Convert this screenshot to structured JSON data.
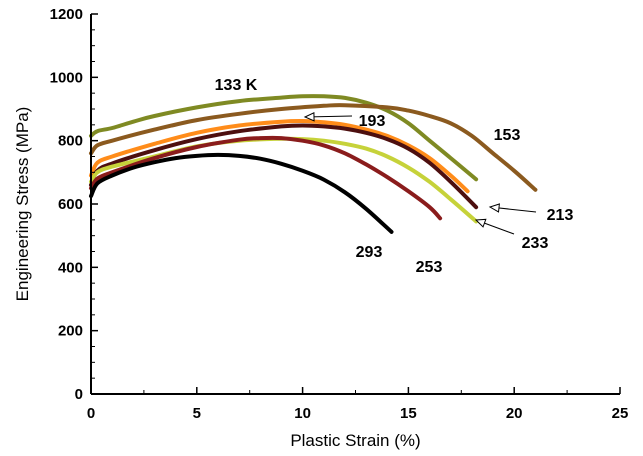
{
  "chart_data": {
    "type": "line",
    "xlabel": "Plastic Strain (%)",
    "ylabel": "Engineering Stress (MPa)",
    "xlim": [
      0,
      25
    ],
    "ylim": [
      0,
      1200
    ],
    "xticks": [
      0,
      5,
      10,
      15,
      20,
      25
    ],
    "yticks": [
      0,
      200,
      400,
      600,
      800,
      1000,
      1200
    ],
    "ytick_labels": [
      "0",
      "200",
      "400",
      "600",
      "800",
      "1000",
      "1200"
    ],
    "grid": false,
    "legend": "none",
    "series": [
      {
        "name": "133 K",
        "color": "#7f8a23",
        "x": [
          0,
          0.3,
          1,
          2,
          3,
          5,
          7,
          9,
          10,
          11,
          12,
          13,
          14,
          15,
          16,
          17,
          18.2
        ],
        "y": [
          815,
          830,
          840,
          860,
          878,
          905,
          925,
          936,
          940,
          940,
          935,
          920,
          895,
          855,
          800,
          745,
          678
        ]
      },
      {
        "name": "153",
        "color": "#8b5a1f",
        "x": [
          0,
          0.3,
          1,
          3,
          5,
          7,
          9,
          11,
          12,
          14,
          15,
          16,
          17,
          18,
          19,
          20,
          21
        ],
        "y": [
          760,
          785,
          800,
          835,
          865,
          885,
          900,
          910,
          912,
          905,
          895,
          878,
          855,
          815,
          760,
          705,
          645
        ]
      },
      {
        "name": "193",
        "color": "#ff8c1a",
        "x": [
          0,
          0.3,
          1,
          3,
          5,
          7,
          9,
          10,
          11,
          12,
          13,
          14,
          15,
          16,
          17,
          17.8
        ],
        "y": [
          690,
          730,
          750,
          790,
          825,
          848,
          860,
          862,
          858,
          850,
          835,
          815,
          785,
          745,
          690,
          640
        ]
      },
      {
        "name": "213",
        "color": "#4d0f0f",
        "x": [
          0,
          0.3,
          1,
          3,
          5,
          7,
          9,
          10,
          11,
          12,
          13,
          14,
          15,
          16,
          17,
          18.2
        ],
        "y": [
          660,
          705,
          728,
          770,
          805,
          830,
          845,
          848,
          845,
          838,
          825,
          805,
          775,
          730,
          670,
          590
        ]
      },
      {
        "name": "233",
        "color": "#c6d23a",
        "x": [
          0,
          0.3,
          1,
          3,
          5,
          7,
          9,
          10,
          11,
          12,
          13,
          14,
          15,
          16,
          17,
          18.2
        ],
        "y": [
          670,
          700,
          718,
          750,
          782,
          800,
          806,
          805,
          800,
          790,
          775,
          750,
          715,
          670,
          615,
          545
        ]
      },
      {
        "name": "253",
        "color": "#8a1c1c",
        "x": [
          0,
          0.3,
          1,
          3,
          5,
          7,
          8,
          9,
          10,
          11,
          12,
          13,
          14,
          15,
          16,
          16.5
        ],
        "y": [
          650,
          680,
          700,
          745,
          780,
          803,
          808,
          808,
          800,
          785,
          760,
          725,
          685,
          640,
          590,
          555
        ]
      },
      {
        "name": "293",
        "color": "#000000",
        "x": [
          0,
          0.3,
          1,
          2,
          3,
          4,
          5,
          6,
          7,
          8,
          9,
          10,
          11,
          12,
          13,
          14.2
        ],
        "y": [
          625,
          665,
          690,
          715,
          732,
          745,
          752,
          755,
          752,
          743,
          727,
          705,
          677,
          637,
          585,
          512
        ]
      }
    ],
    "annotations": [
      {
        "text": "133 K"
      },
      {
        "text": "153"
      },
      {
        "text": "193"
      },
      {
        "text": "213"
      },
      {
        "text": "233"
      },
      {
        "text": "253"
      },
      {
        "text": "293"
      }
    ]
  }
}
